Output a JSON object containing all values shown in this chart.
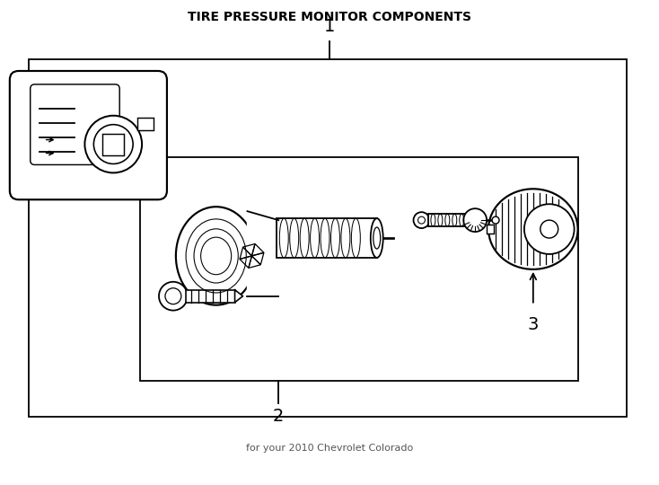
{
  "title": "TIRE PRESSURE MONITOR COMPONENTS",
  "subtitle": "for your 2010 Chevrolet Colorado",
  "background_color": "#ffffff",
  "line_color": "#000000",
  "label_1": "1",
  "label_2": "2",
  "label_3": "3"
}
